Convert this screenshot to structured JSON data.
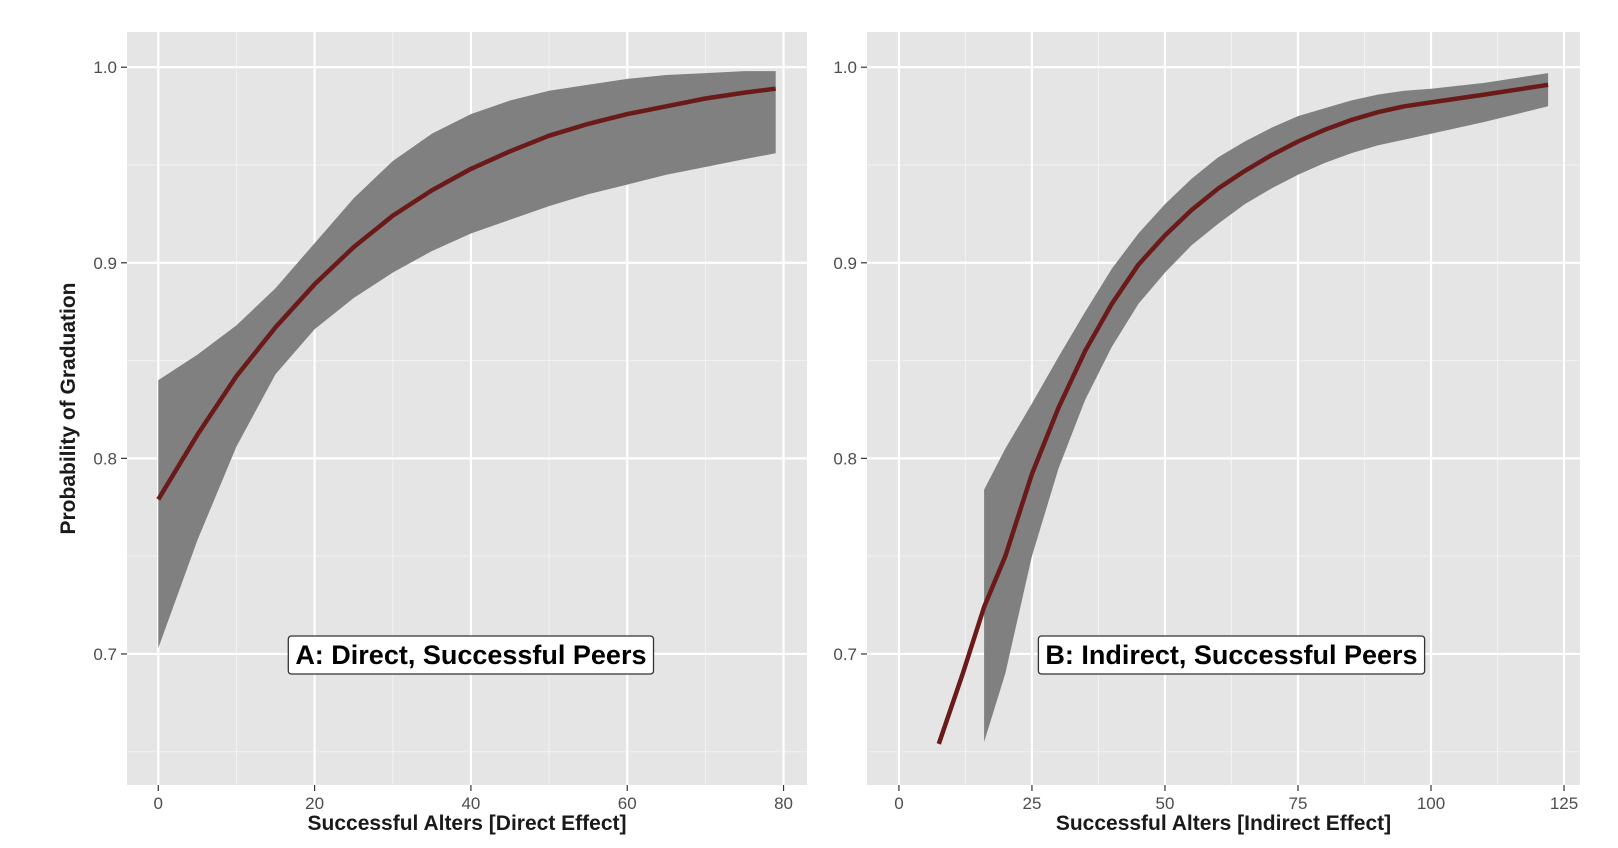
{
  "chart_data": [
    {
      "type": "line",
      "panel": "A",
      "annotation": "A: Direct, Successful Peers",
      "xlabel": "Successful Alters [Direct Effect]",
      "ylabel": "Probability of Graduation",
      "xlim": [
        -4,
        83
      ],
      "ylim": [
        0.633,
        1.018
      ],
      "xticks": [
        0,
        20,
        40,
        60,
        80
      ],
      "yticks": [
        0.7,
        0.8,
        0.9,
        1.0
      ],
      "ytick_labels": [
        "0.7",
        "0.8",
        "0.9",
        "1.0"
      ],
      "grid": true,
      "line_color": "#6b1a1a",
      "band_color": "#808080",
      "series": [
        {
          "x": [
            0,
            5,
            10,
            15,
            20,
            25,
            30,
            35,
            40,
            45,
            50,
            55,
            60,
            65,
            70,
            75,
            79
          ],
          "y": [
            0.779,
            0.812,
            0.842,
            0.867,
            0.889,
            0.908,
            0.924,
            0.937,
            0.948,
            0.957,
            0.965,
            0.971,
            0.976,
            0.98,
            0.984,
            0.987,
            0.989
          ],
          "lower": [
            0.703,
            0.758,
            0.806,
            0.843,
            0.866,
            0.882,
            0.895,
            0.906,
            0.915,
            0.922,
            0.929,
            0.935,
            0.94,
            0.945,
            0.949,
            0.953,
            0.956
          ],
          "upper": [
            0.84,
            0.853,
            0.868,
            0.887,
            0.91,
            0.933,
            0.952,
            0.966,
            0.976,
            0.983,
            0.988,
            0.991,
            0.994,
            0.996,
            0.997,
            0.998,
            0.998
          ]
        }
      ]
    },
    {
      "type": "line",
      "panel": "B",
      "annotation": "B: Indirect, Successful Peers",
      "xlabel": "Successful Alters [Indirect Effect]",
      "ylabel": "",
      "xlim": [
        -6,
        128
      ],
      "ylim": [
        0.633,
        1.018
      ],
      "xticks": [
        0,
        25,
        50,
        75,
        100,
        125
      ],
      "yticks": [
        0.7,
        0.8,
        0.9,
        1.0
      ],
      "ytick_labels": [
        "0.7",
        "0.8",
        "0.9",
        "1.0"
      ],
      "grid": true,
      "line_color": "#6b1a1a",
      "band_color": "#808080",
      "series": [
        {
          "x": [
            7.5,
            12,
            16,
            20,
            25,
            30,
            35,
            40,
            45,
            50,
            55,
            60,
            65,
            70,
            75,
            80,
            85,
            90,
            95,
            100,
            110,
            122
          ],
          "y": [
            0.654,
            0.69,
            0.724,
            0.75,
            0.792,
            0.826,
            0.855,
            0.879,
            0.899,
            0.914,
            0.927,
            0.938,
            0.947,
            0.955,
            0.962,
            0.968,
            0.973,
            0.977,
            0.98,
            0.982,
            0.986,
            0.991
          ],
          "lower": [
            null,
            null,
            0.655,
            0.69,
            0.75,
            0.795,
            0.83,
            0.857,
            0.879,
            0.895,
            0.909,
            0.92,
            0.93,
            0.938,
            0.945,
            0.951,
            0.956,
            0.96,
            0.963,
            0.966,
            0.972,
            0.98
          ],
          "upper": [
            null,
            null,
            0.784,
            0.805,
            0.828,
            0.852,
            0.875,
            0.897,
            0.915,
            0.93,
            0.943,
            0.954,
            0.962,
            0.969,
            0.975,
            0.979,
            0.983,
            0.986,
            0.988,
            0.989,
            0.992,
            0.997
          ]
        }
      ]
    }
  ]
}
